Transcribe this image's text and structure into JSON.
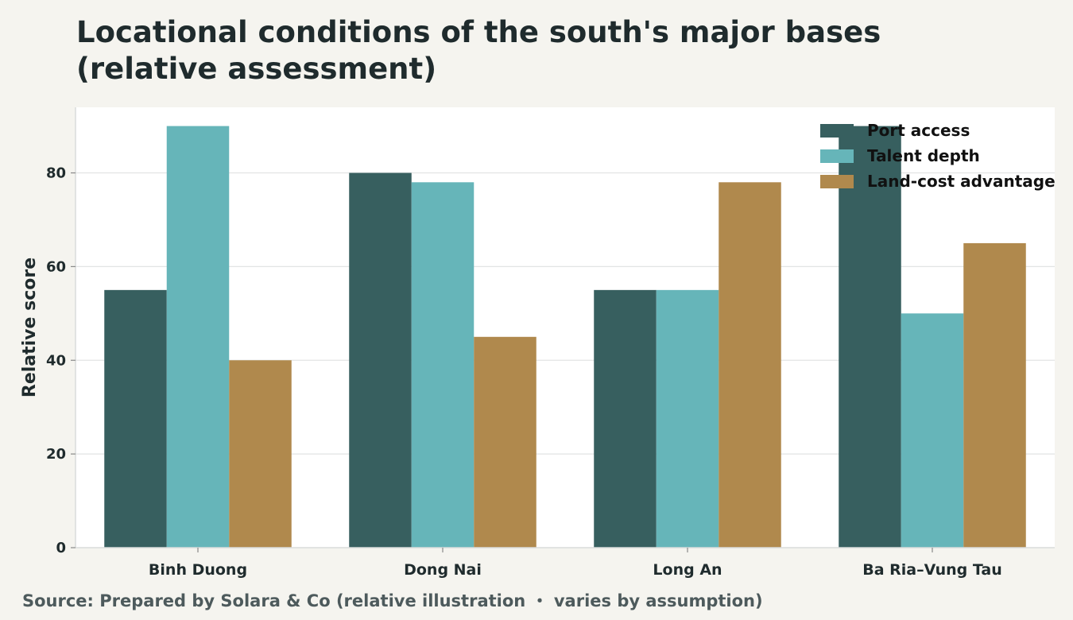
{
  "title": "Locational conditions of the south's major bases (relative assessment)",
  "source": "Source: Prepared by Solara & Co (relative illustration ・ varies by assumption)",
  "chart_data": {
    "type": "bar",
    "categories": [
      "Binh Duong",
      "Dong Nai",
      "Long An",
      "Ba Ria–Vung Tau"
    ],
    "series": [
      {
        "name": "Port access",
        "values": [
          55,
          80,
          55,
          90
        ],
        "color": "#375f5f"
      },
      {
        "name": "Talent depth",
        "values": [
          90,
          78,
          55,
          50
        ],
        "color": "#66b5b9"
      },
      {
        "name": "Land-cost advantage",
        "values": [
          40,
          45,
          78,
          65
        ],
        "color": "#b0894d"
      }
    ],
    "xlabel": "",
    "ylabel": "Relative score",
    "ylim": [
      0,
      94
    ],
    "yticks": [
      0,
      20,
      40,
      60,
      80
    ],
    "grid": "horizontal",
    "legend_position": "top-right"
  }
}
